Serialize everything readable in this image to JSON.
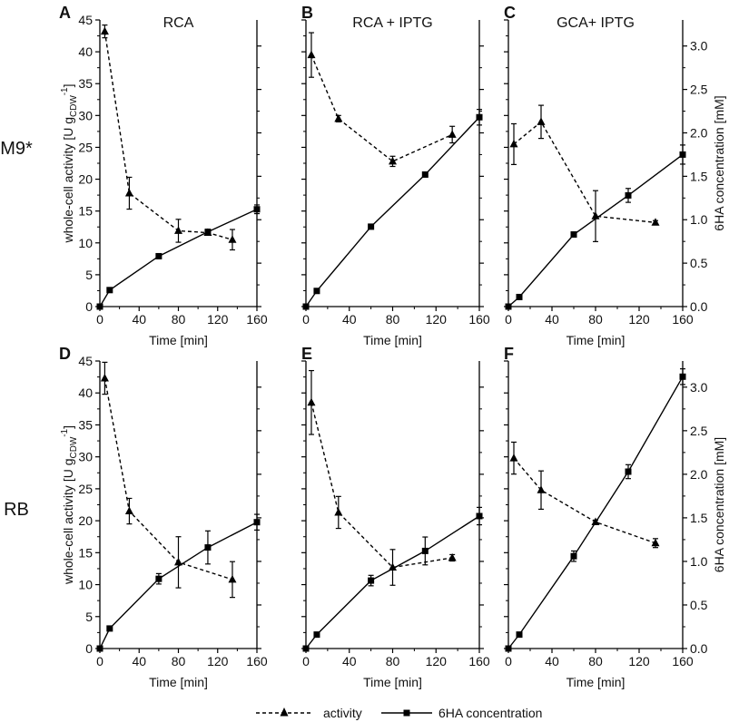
{
  "figure": {
    "row_labels": [
      "M9*",
      "RB"
    ],
    "left_ylabel": "whole-cell activity [U g",
    "left_ylabel_sub": "CDW",
    "left_ylabel_sup": "-1",
    "left_ylabel_end": "]",
    "right_ylabel": "6HA concentration [mM]",
    "xlabel": "Time [min]",
    "legend": {
      "activity": "activity",
      "concentration": "6HA concentration"
    }
  },
  "colors": {
    "line": "#000000",
    "background": "#ffffff"
  },
  "chart_data": [
    {
      "panel": "A",
      "title": "RCA",
      "type": "line",
      "xlim": [
        0,
        160
      ],
      "xticks": [
        0,
        40,
        80,
        120,
        160
      ],
      "ylim_left": [
        0,
        45
      ],
      "yticks_left": [
        0,
        5,
        10,
        15,
        20,
        25,
        30,
        35,
        40,
        45
      ],
      "ylim_right": [
        0,
        3.3
      ],
      "activity": {
        "x": [
          5,
          30,
          80,
          110,
          135
        ],
        "y": [
          43.2,
          17.8,
          11.9,
          11.6,
          10.5
        ],
        "err": [
          1.0,
          2.5,
          1.8,
          0.4,
          1.6
        ]
      },
      "concentration": {
        "x": [
          0,
          10,
          60,
          110,
          160
        ],
        "y": [
          0,
          0.19,
          0.58,
          0.86,
          1.12
        ],
        "err": [
          0,
          0,
          0,
          0.03,
          0.05
        ]
      }
    },
    {
      "panel": "B",
      "title": "RCA + IPTG",
      "type": "line",
      "xlim": [
        0,
        160
      ],
      "xticks": [
        0,
        40,
        80,
        120,
        160
      ],
      "ylim_left": [
        0,
        45
      ],
      "ylim_right": [
        0,
        3.3
      ],
      "activity": {
        "x": [
          5,
          30,
          80,
          135
        ],
        "y": [
          39.5,
          29.5,
          22.8,
          27.0
        ],
        "err": [
          3.5,
          0.5,
          0.8,
          1.3
        ]
      },
      "concentration": {
        "x": [
          0,
          10,
          60,
          110,
          160
        ],
        "y": [
          0,
          0.18,
          0.92,
          1.52,
          2.18
        ],
        "err": [
          0,
          0,
          0,
          0,
          0.09
        ]
      }
    },
    {
      "panel": "C",
      "title": "GCA+ IPTG",
      "type": "line",
      "xlim": [
        0,
        160
      ],
      "xticks": [
        0,
        40,
        80,
        120,
        160
      ],
      "ylim_left": [
        0,
        45
      ],
      "ylim_right": [
        0,
        3.3
      ],
      "yticks_right": [
        0.0,
        0.5,
        1.0,
        1.5,
        2.0,
        2.5,
        3.0
      ],
      "yticks_right_labels": [
        "0.0",
        "0.5",
        "1.0",
        "1.5",
        "2.0",
        "2.5",
        "3.0"
      ],
      "activity": {
        "x": [
          5,
          30,
          80,
          135
        ],
        "y": [
          25.5,
          29.0,
          14.2,
          13.2
        ],
        "err": [
          3.2,
          2.6,
          4.0,
          0.3
        ]
      },
      "concentration": {
        "x": [
          0,
          10,
          60,
          110,
          160
        ],
        "y": [
          0,
          0.11,
          0.83,
          1.28,
          1.75
        ],
        "err": [
          0,
          0,
          0,
          0.08,
          0.11
        ]
      }
    },
    {
      "panel": "D",
      "title": "",
      "type": "line",
      "xlim": [
        0,
        160
      ],
      "xticks": [
        0,
        40,
        80,
        120,
        160
      ],
      "ylim_left": [
        0,
        45
      ],
      "yticks_left": [
        0,
        5,
        10,
        15,
        20,
        25,
        30,
        35,
        40,
        45
      ],
      "ylim_right": [
        0,
        3.3
      ],
      "activity": {
        "x": [
          5,
          30,
          80,
          135
        ],
        "y": [
          42.3,
          21.5,
          13.5,
          10.8
        ],
        "err": [
          2.5,
          2.0,
          4.0,
          2.8
        ]
      },
      "concentration": {
        "x": [
          0,
          10,
          60,
          110,
          160
        ],
        "y": [
          0,
          0.23,
          0.8,
          1.16,
          1.45
        ],
        "err": [
          0,
          0,
          0.06,
          0.19,
          0.09
        ]
      }
    },
    {
      "panel": "E",
      "title": "",
      "type": "line",
      "xlim": [
        0,
        160
      ],
      "xticks": [
        0,
        40,
        80,
        120,
        160
      ],
      "ylim_left": [
        0,
        45
      ],
      "ylim_right": [
        0,
        3.3
      ],
      "activity": {
        "x": [
          5,
          30,
          80,
          135
        ],
        "y": [
          38.5,
          21.3,
          12.7,
          14.2
        ],
        "err": [
          5.0,
          2.5,
          2.8,
          0.5
        ]
      },
      "concentration": {
        "x": [
          0,
          10,
          60,
          110,
          160
        ],
        "y": [
          0,
          0.16,
          0.78,
          1.12,
          1.52
        ],
        "err": [
          0,
          0,
          0.06,
          0.16,
          0.1
        ]
      }
    },
    {
      "panel": "F",
      "title": "",
      "type": "line",
      "xlim": [
        0,
        160
      ],
      "xticks": [
        0,
        40,
        80,
        120,
        160
      ],
      "ylim_left": [
        0,
        45
      ],
      "ylim_right": [
        0,
        3.3
      ],
      "yticks_right": [
        0.0,
        0.5,
        1.0,
        1.5,
        2.0,
        2.5,
        3.0
      ],
      "yticks_right_labels": [
        "0.0",
        "0.5",
        "1.0",
        "1.5",
        "2.0",
        "2.5",
        "3.0"
      ],
      "activity": {
        "x": [
          5,
          30,
          80,
          135
        ],
        "y": [
          29.8,
          24.8,
          19.8,
          16.5
        ],
        "err": [
          2.5,
          3.0,
          0.3,
          0.7
        ]
      },
      "concentration": {
        "x": [
          0,
          10,
          60,
          110,
          160
        ],
        "y": [
          0,
          0.16,
          1.06,
          2.03,
          3.12
        ],
        "err": [
          0,
          0,
          0.06,
          0.08,
          0.09
        ]
      }
    }
  ]
}
